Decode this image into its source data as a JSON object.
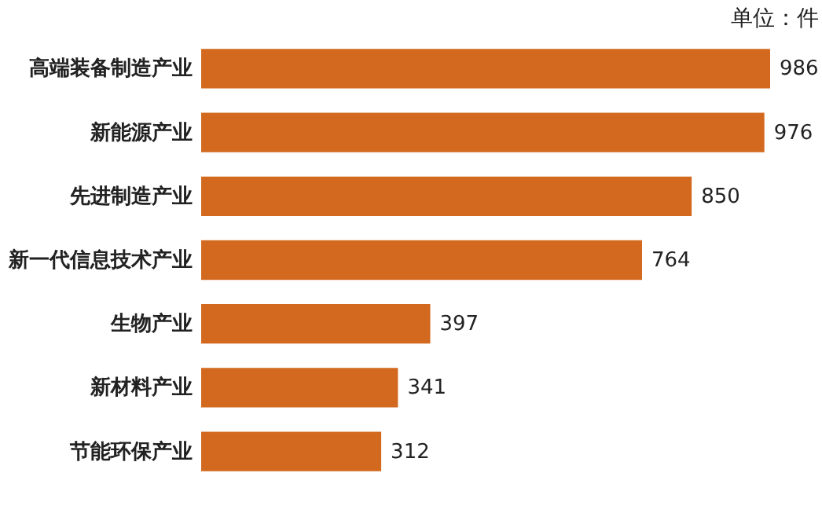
{
  "chart_data": {
    "type": "bar",
    "orientation": "horizontal",
    "annotations": [
      "单位：件"
    ],
    "categories": [
      "高端装备制造产业",
      "新能源产业",
      "先进制造产业",
      "新一代信息技术产业",
      "生物产业",
      "新材料产业",
      "节能环保产业"
    ],
    "values": [
      986,
      976,
      850,
      764,
      397,
      341,
      312
    ],
    "color": "#d2691e",
    "data_labels": true
  }
}
